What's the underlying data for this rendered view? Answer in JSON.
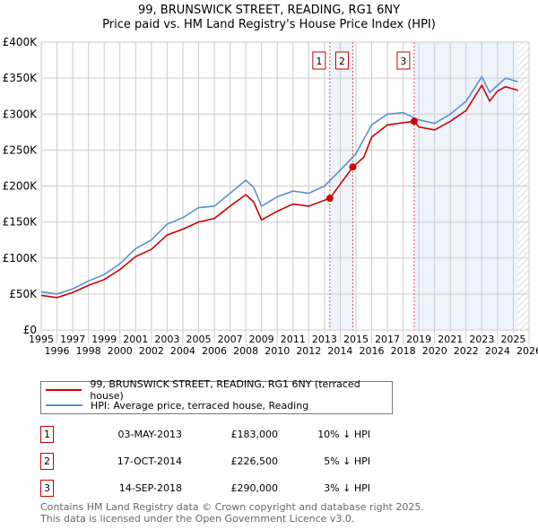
{
  "chart_data": {
    "type": "line",
    "title": "99, BRUNSWICK STREET, READING, RG1 6NY",
    "subtitle": "Price paid vs. HM Land Registry's House Price Index (HPI)",
    "xlim": [
      1995,
      2026
    ],
    "ylim": [
      0,
      400000
    ],
    "x_ticks": [
      "1995",
      "1996",
      "1997",
      "1998",
      "1999",
      "2000",
      "2001",
      "2002",
      "2003",
      "2004",
      "2005",
      "2006",
      "2007",
      "2008",
      "2009",
      "2010",
      "2011",
      "2012",
      "2013",
      "2014",
      "2015",
      "2016",
      "2017",
      "2018",
      "2019",
      "2020",
      "2021",
      "2022",
      "2023",
      "2024",
      "2025",
      "2026"
    ],
    "y_ticks": [
      {
        "v": 0,
        "label": "£0"
      },
      {
        "v": 50000,
        "label": "£50K"
      },
      {
        "v": 100000,
        "label": "£100K"
      },
      {
        "v": 150000,
        "label": "£150K"
      },
      {
        "v": 200000,
        "label": "£200K"
      },
      {
        "v": 250000,
        "label": "£250K"
      },
      {
        "v": 300000,
        "label": "£300K"
      },
      {
        "v": 350000,
        "label": "£350K"
      },
      {
        "v": 400000,
        "label": "£400K"
      }
    ],
    "grid": true,
    "series": [
      {
        "name": "99, BRUNSWICK STREET, READING, RG1 6NY (terraced house)",
        "color": "#cc0000",
        "x": [
          1995,
          1996,
          1997,
          1998,
          1999,
          2000,
          2001,
          2002,
          2003,
          2004,
          2005,
          2006,
          2007,
          2008,
          2008.5,
          2009,
          2010,
          2011,
          2012,
          2013.35,
          2014.8,
          2015.5,
          2016,
          2017,
          2018,
          2018.7,
          2019,
          2020,
          2021,
          2022,
          2023,
          2023.5,
          2024,
          2024.5,
          2025.3
        ],
        "y": [
          48000,
          45000,
          52000,
          62000,
          70000,
          84000,
          102000,
          112000,
          132000,
          140000,
          150000,
          155000,
          172000,
          188000,
          178000,
          153000,
          165000,
          175000,
          172000,
          183000,
          226500,
          240000,
          268000,
          285000,
          288000,
          290000,
          282000,
          278000,
          290000,
          305000,
          340000,
          318000,
          332000,
          338000,
          333000
        ]
      },
      {
        "name": "HPI: Average price, terraced house, Reading",
        "color": "#5b8fd0",
        "x": [
          1995,
          1996,
          1997,
          1998,
          1999,
          2000,
          2001,
          2002,
          2003,
          2004,
          2005,
          2006,
          2007,
          2008,
          2008.5,
          2009,
          2010,
          2011,
          2012,
          2013,
          2014,
          2015,
          2016,
          2017,
          2018,
          2019,
          2020,
          2021,
          2022,
          2023,
          2023.5,
          2024,
          2024.5,
          2025.3
        ],
        "y": [
          53000,
          50000,
          57000,
          68000,
          77000,
          92000,
          113000,
          125000,
          147000,
          156000,
          170000,
          172000,
          190000,
          208000,
          198000,
          172000,
          185000,
          193000,
          190000,
          200000,
          222000,
          245000,
          285000,
          300000,
          302000,
          292000,
          287000,
          300000,
          318000,
          352000,
          330000,
          340000,
          350000,
          345000
        ]
      }
    ],
    "sales": [
      {
        "num": "1",
        "x": 2013.34,
        "date": "03-MAY-2013",
        "price": "£183,000",
        "value": 183000,
        "hpi": "10% ↓ HPI"
      },
      {
        "num": "2",
        "x": 2014.8,
        "date": "17-OCT-2014",
        "price": "£226,500",
        "value": 226500,
        "hpi": "5% ↓ HPI"
      },
      {
        "num": "3",
        "x": 2018.7,
        "date": "14-SEP-2018",
        "price": "£290,000",
        "value": 290000,
        "hpi": "3% ↓ HPI"
      }
    ],
    "shaded_ranges": [
      [
        2013.34,
        2014.8
      ],
      [
        2018.7,
        2025.3
      ]
    ],
    "forecast_start": 2025.3,
    "legend_placement": "below"
  },
  "footer": {
    "line1": "Contains HM Land Registry data © Crown copyright and database right 2025.",
    "line2": "This data is licensed under the Open Government Licence v3.0."
  }
}
